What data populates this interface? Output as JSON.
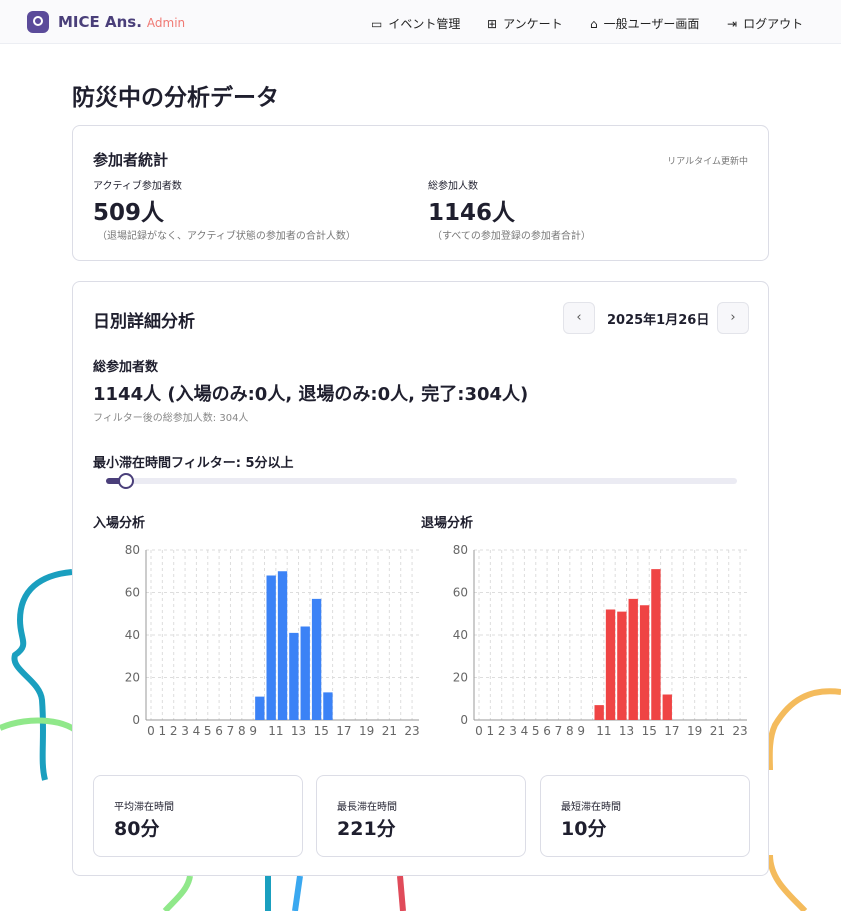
{
  "nav": {
    "brand": "MICE Ans.",
    "brand_sub": "Admin",
    "items": [
      {
        "label": "イベント管理",
        "icon": "calendar-icon"
      },
      {
        "label": "アンケート",
        "icon": "grid-icon"
      },
      {
        "label": "一般ユーザー画面",
        "icon": "home-icon"
      },
      {
        "label": "ログアウト",
        "icon": "logout-icon"
      }
    ]
  },
  "page_title": "防災中の分析データ",
  "stats": {
    "title": "参加者統計",
    "realtime": "リアルタイム更新中",
    "active_label": "アクティブ参加者数",
    "active_value": "509人",
    "active_note": "（退場記録がなく、アクティブ状態の参加者の合計人数）",
    "total_label": "総参加人数",
    "total_value": "1146人",
    "total_note": "（すべての参加登録の参加者合計）"
  },
  "daily": {
    "title": "日別詳細分析",
    "date": "2025年1月26日",
    "total_label": "総参加者数",
    "total_value": "1144人 (入場のみ:0人, 退場のみ:0人, 完了:304人)",
    "filtered_note": "フィルター後の総参加人数: 304人",
    "filter_label": "最小滞在時間フィルター: 5分以上",
    "filter_value_min": 5,
    "entry_title": "入場分析",
    "exit_title": "退場分析",
    "avg_label": "平均滞在時間",
    "avg_value": "80分",
    "max_label": "最長滞在時間",
    "max_value": "221分",
    "min_label": "最短滞在時間",
    "min_value": "10分"
  },
  "chart_data": [
    {
      "type": "bar",
      "title": "入場分析",
      "x": [
        0,
        1,
        2,
        3,
        4,
        5,
        6,
        7,
        8,
        9,
        10,
        11,
        12,
        13,
        14,
        15,
        16,
        17,
        18,
        19,
        20,
        21,
        22,
        23
      ],
      "values": [
        0,
        0,
        0,
        0,
        0,
        0,
        0,
        0,
        0,
        11,
        68,
        70,
        41,
        44,
        57,
        13,
        0,
        0,
        0,
        0,
        0,
        0,
        0,
        0
      ],
      "ylim": [
        0,
        80
      ],
      "yticks": [
        0,
        20,
        40,
        60,
        80
      ],
      "xticks": [
        "0",
        "1",
        "2",
        "3",
        "4",
        "5",
        "6",
        "7",
        "8",
        "9",
        "11",
        "13",
        "15",
        "17",
        "19",
        "21",
        "23"
      ],
      "color": "#3b82f6",
      "grid": true
    },
    {
      "type": "bar",
      "title": "退場分析",
      "x": [
        0,
        1,
        2,
        3,
        4,
        5,
        6,
        7,
        8,
        9,
        10,
        11,
        12,
        13,
        14,
        15,
        16,
        17,
        18,
        19,
        20,
        21,
        22,
        23
      ],
      "values": [
        0,
        0,
        0,
        0,
        0,
        0,
        0,
        0,
        0,
        0,
        7,
        52,
        51,
        57,
        54,
        71,
        12,
        0,
        0,
        0,
        0,
        0,
        0,
        0
      ],
      "ylim": [
        0,
        80
      ],
      "yticks": [
        0,
        20,
        40,
        60,
        80
      ],
      "xticks": [
        "0",
        "1",
        "2",
        "3",
        "4",
        "5",
        "6",
        "7",
        "8",
        "9",
        "11",
        "13",
        "15",
        "17",
        "19",
        "21",
        "23"
      ],
      "color": "#ef4444",
      "grid": true
    }
  ]
}
